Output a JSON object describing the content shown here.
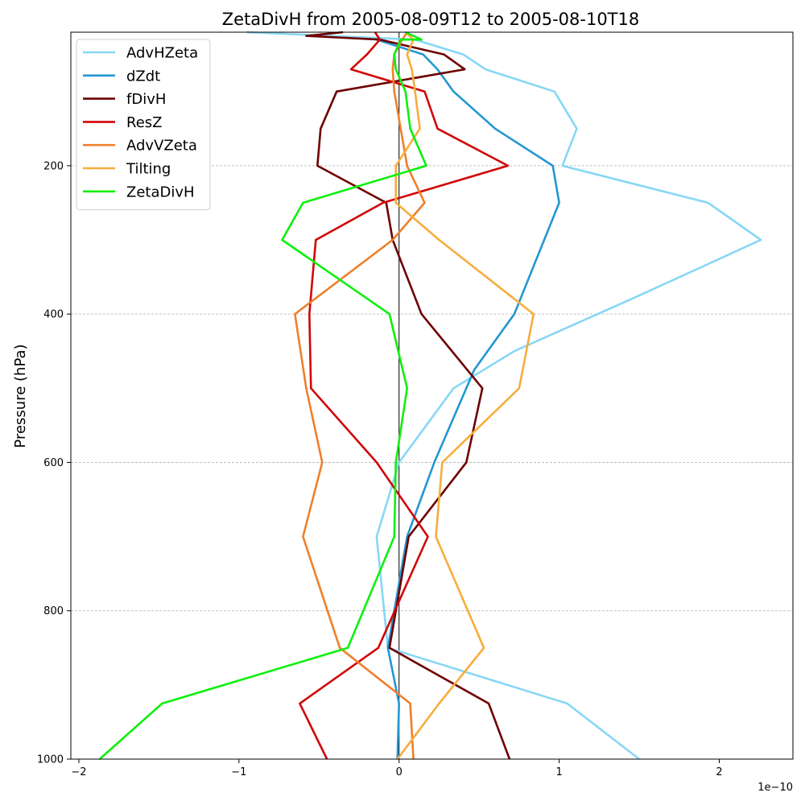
{
  "chart_data": {
    "type": "line",
    "title": "ZetaDivH from 2005-08-09T12 to 2005-08-10T18",
    "xlabel": "",
    "ylabel": "Pressure (hPa)",
    "x_scale_label": "1e−10",
    "xlim": [
      -2.05,
      2.46
    ],
    "ylim": [
      1000,
      20
    ],
    "y_inverted": true,
    "xticks": [
      -2,
      -1,
      0,
      1,
      2
    ],
    "xtick_labels": [
      "−2",
      "−1",
      "0",
      "1",
      "2"
    ],
    "yticks": [
      200,
      400,
      600,
      800,
      1000
    ],
    "ytick_labels": [
      "200",
      "400",
      "600",
      "800",
      "1000"
    ],
    "grid": "horizontal dashed at y ticks",
    "zero_line": 0,
    "legend_position": "top-left",
    "series": [
      {
        "name": "AdvHZeta",
        "color": "#87d7f5",
        "points": [
          [
            1.5,
            1000
          ],
          [
            1.05,
            925
          ],
          [
            -0.07,
            850
          ],
          [
            -0.14,
            700
          ],
          [
            0,
            600
          ],
          [
            0.34,
            500
          ],
          [
            0.72,
            450
          ],
          [
            1.5,
            375
          ],
          [
            2.26,
            300
          ],
          [
            1.93,
            250
          ],
          [
            1.02,
            200
          ],
          [
            1.11,
            150
          ],
          [
            0.97,
            100
          ],
          [
            0.54,
            70
          ],
          [
            0.4,
            50
          ],
          [
            0.1,
            30
          ],
          [
            -0.95,
            20
          ]
        ]
      },
      {
        "name": "dZdt",
        "color": "#2397d1",
        "points": [
          [
            -0.01,
            1000
          ],
          [
            0,
            925
          ],
          [
            -0.07,
            850
          ],
          [
            0.05,
            700
          ],
          [
            0.22,
            600
          ],
          [
            0.47,
            475
          ],
          [
            0.72,
            400
          ],
          [
            1.0,
            250
          ],
          [
            0.96,
            200
          ],
          [
            0.6,
            150
          ],
          [
            0.34,
            100
          ],
          [
            0.24,
            70
          ],
          [
            0.15,
            50
          ],
          [
            -0.14,
            30
          ]
        ]
      },
      {
        "name": "fDivH",
        "color": "#6e0000",
        "points": [
          [
            0.69,
            1000
          ],
          [
            0.56,
            925
          ],
          [
            -0.06,
            850
          ],
          [
            0.06,
            700
          ],
          [
            0.42,
            600
          ],
          [
            0.52,
            500
          ],
          [
            0.14,
            400
          ],
          [
            -0.04,
            300
          ],
          [
            -0.08,
            250
          ],
          [
            -0.51,
            200
          ],
          [
            -0.49,
            150
          ],
          [
            -0.39,
            100
          ],
          [
            0.41,
            70
          ],
          [
            0.28,
            50
          ],
          [
            -0.12,
            30
          ],
          [
            -0.58,
            25
          ],
          [
            -0.35,
            20
          ]
        ]
      },
      {
        "name": "ResZ",
        "color": "#d10606",
        "points": [
          [
            -0.45,
            1000
          ],
          [
            -0.62,
            925
          ],
          [
            -0.13,
            850
          ],
          [
            0.18,
            700
          ],
          [
            -0.14,
            600
          ],
          [
            -0.55,
            500
          ],
          [
            -0.56,
            400
          ],
          [
            -0.52,
            300
          ],
          [
            -0.1,
            250
          ],
          [
            0.68,
            200
          ],
          [
            0.24,
            150
          ],
          [
            0.16,
            100
          ],
          [
            -0.3,
            70
          ],
          [
            -0.2,
            50
          ],
          [
            -0.12,
            30
          ],
          [
            -0.15,
            20
          ]
        ]
      },
      {
        "name": "AdvVZeta",
        "color": "#ef7f2b",
        "points": [
          [
            0.09,
            1000
          ],
          [
            0.07,
            925
          ],
          [
            -0.37,
            850
          ],
          [
            -0.6,
            700
          ],
          [
            -0.48,
            600
          ],
          [
            -0.58,
            500
          ],
          [
            -0.65,
            400
          ],
          [
            -0.04,
            300
          ],
          [
            0.16,
            250
          ],
          [
            0.05,
            200
          ],
          [
            -0.03,
            100
          ],
          [
            -0.04,
            70
          ],
          [
            -0.03,
            50
          ],
          [
            0.02,
            30
          ],
          [
            0.05,
            20
          ]
        ]
      },
      {
        "name": "Tilting",
        "color": "#f7ad3c",
        "points": [
          [
            -0.01,
            1000
          ],
          [
            0.25,
            925
          ],
          [
            0.53,
            850
          ],
          [
            0.23,
            700
          ],
          [
            0.27,
            600
          ],
          [
            0.75,
            500
          ],
          [
            0.84,
            400
          ],
          [
            0.25,
            300
          ],
          [
            -0.02,
            250
          ],
          [
            -0.02,
            200
          ],
          [
            0.13,
            150
          ],
          [
            0.1,
            100
          ],
          [
            0.08,
            70
          ],
          [
            0.05,
            50
          ],
          [
            0.09,
            30
          ],
          [
            0.04,
            20
          ]
        ]
      },
      {
        "name": "ZetaDivH",
        "color": "#0ef00e",
        "points": [
          [
            -1.87,
            1000
          ],
          [
            -1.48,
            925
          ],
          [
            -0.32,
            850
          ],
          [
            -0.03,
            700
          ],
          [
            -0.02,
            600
          ],
          [
            0.05,
            500
          ],
          [
            -0.06,
            400
          ],
          [
            -0.73,
            300
          ],
          [
            -0.6,
            250
          ],
          [
            0.17,
            200
          ],
          [
            0.07,
            150
          ],
          [
            0.04,
            100
          ],
          [
            -0.02,
            70
          ],
          [
            -0.03,
            50
          ],
          [
            0.01,
            30
          ],
          [
            0.14,
            30
          ],
          [
            0.09,
            25
          ],
          [
            0.04,
            20
          ]
        ]
      }
    ]
  }
}
